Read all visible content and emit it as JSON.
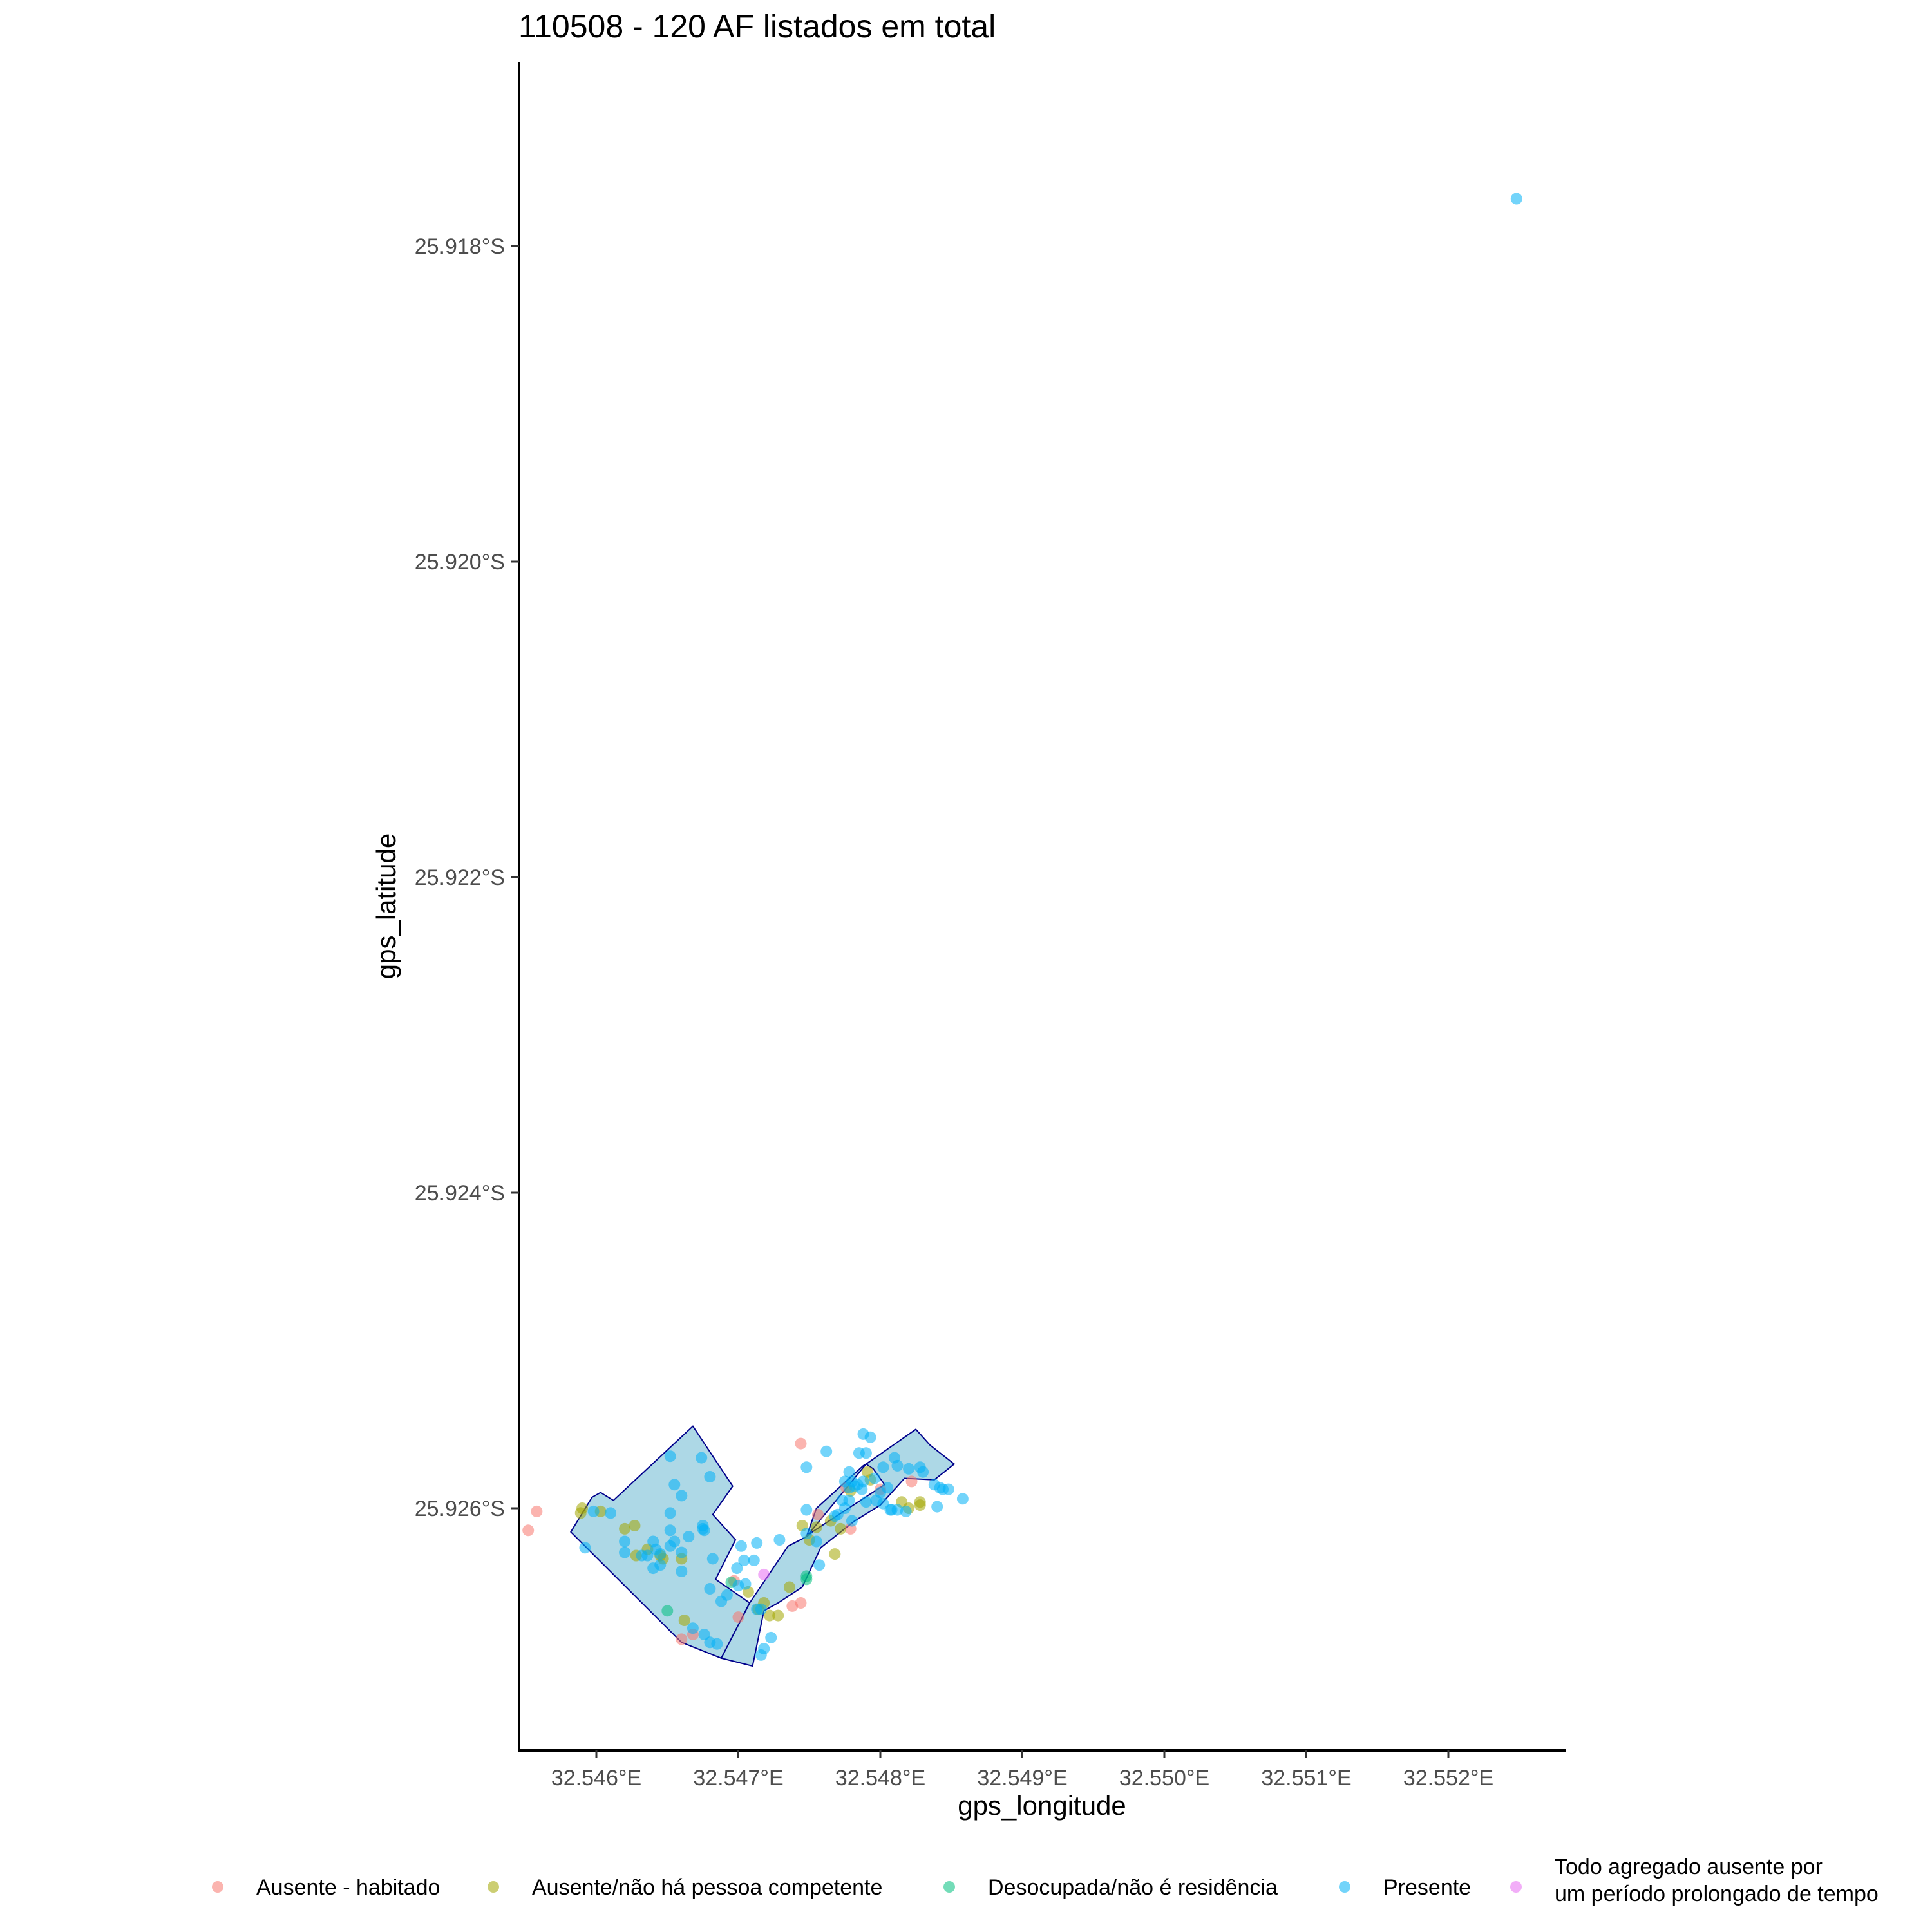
{
  "chart_data": {
    "type": "scatter",
    "title": "110508 - 120 AF listados em total",
    "xlabel": "gps_longitude",
    "ylabel": "gps_latitude",
    "xlim": [
      32.5455,
      32.5528
    ],
    "ylim": [
      -25.9272,
      -25.9168
    ],
    "x_ticks": [
      32.546,
      32.547,
      32.548,
      32.549,
      32.55,
      32.551,
      32.552
    ],
    "x_tick_labels": [
      "32.546°E",
      "32.547°E",
      "32.548°E",
      "32.549°E",
      "32.550°E",
      "32.551°E",
      "32.552°E"
    ],
    "y_ticks": [
      -25.918,
      -25.92,
      -25.922,
      -25.924,
      -25.926
    ],
    "y_tick_labels": [
      "25.918°S",
      "25.920°S",
      "25.922°S",
      "25.924°S",
      "25.926°S"
    ],
    "grid": false,
    "legend_position": "bottom",
    "polygon": {
      "fill": "#add8e6",
      "stroke": "#00008b",
      "shapes": [
        [
          [
            32.54582,
            -25.92615
          ],
          [
            32.54597,
            -25.92593
          ],
          [
            32.54603,
            -25.9259
          ],
          [
            32.54612,
            -25.92595
          ],
          [
            32.54668,
            -25.92548
          ],
          [
            32.54696,
            -25.92586
          ],
          [
            32.54682,
            -25.92604
          ],
          [
            32.54698,
            -25.9262
          ],
          [
            32.54684,
            -25.92645
          ],
          [
            32.54708,
            -25.9266
          ],
          [
            32.54688,
            -25.92695
          ],
          [
            32.5466,
            -25.92685
          ],
          [
            32.54582,
            -25.92615
          ]
        ],
        [
          [
            32.54708,
            -25.9266
          ],
          [
            32.54735,
            -25.92624
          ],
          [
            32.54748,
            -25.92618
          ],
          [
            32.54752,
            -25.92615
          ],
          [
            32.54803,
            -25.92585
          ],
          [
            32.54795,
            -25.92575
          ],
          [
            32.5479,
            -25.92572
          ],
          [
            32.54825,
            -25.9255
          ],
          [
            32.54835,
            -25.9256
          ],
          [
            32.54852,
            -25.92572
          ],
          [
            32.54838,
            -25.92582
          ],
          [
            32.54817,
            -25.92581
          ],
          [
            32.548,
            -25.92598
          ],
          [
            32.54782,
            -25.92608
          ],
          [
            32.54758,
            -25.92625
          ],
          [
            32.54745,
            -25.9265
          ],
          [
            32.54728,
            -25.9266
          ],
          [
            32.54718,
            -25.92665
          ],
          [
            32.5471,
            -25.927
          ],
          [
            32.54688,
            -25.92695
          ],
          [
            32.54708,
            -25.9266
          ]
        ],
        [
          [
            32.54748,
            -25.92618
          ],
          [
            32.54755,
            -25.926
          ],
          [
            32.54788,
            -25.92573
          ],
          [
            32.5479,
            -25.92572
          ],
          [
            32.54748,
            -25.92618
          ]
        ]
      ]
    },
    "legend": [
      {
        "name": "Ausente - habitado",
        "color": "#f8766d"
      },
      {
        "name": "Ausente/não há pessoa competente",
        "color": "#a3a500"
      },
      {
        "name": "Desocupada/não é residência",
        "color": "#00bf7d"
      },
      {
        "name": "Presente",
        "color": "#00b0f6"
      },
      {
        "name": "Todo agregado ausente por",
        "name_line2": "um período prolongado de tempo",
        "color": "#e76bf3"
      }
    ],
    "series": [
      {
        "name": "Ausente - habitado",
        "color": "#f8766d",
        "points": [
          [
            32.54744,
            -25.92559
          ],
          [
            32.548,
            -25.92588
          ],
          [
            32.54822,
            -25.92583
          ],
          [
            32.54756,
            -25.92604
          ],
          [
            32.54779,
            -25.92613
          ],
          [
            32.54558,
            -25.92602
          ],
          [
            32.54552,
            -25.92614
          ],
          [
            32.54697,
            -25.92646
          ],
          [
            32.547,
            -25.92669
          ],
          [
            32.54744,
            -25.9266
          ],
          [
            32.54738,
            -25.92662
          ],
          [
            32.54668,
            -25.9268
          ],
          [
            32.5466,
            -25.92683
          ],
          [
            32.54776,
            -25.92587
          ]
        ]
      },
      {
        "name": "Ausente/não há pessoa competente",
        "color": "#a3a500",
        "points": [
          [
            32.54589,
            -25.92603
          ],
          [
            32.54603,
            -25.92602
          ],
          [
            32.5462,
            -25.92613
          ],
          [
            32.54627,
            -25.92611
          ],
          [
            32.5459,
            -25.926
          ],
          [
            32.54628,
            -25.9263
          ],
          [
            32.54636,
            -25.92626
          ],
          [
            32.54647,
            -25.92632
          ],
          [
            32.5466,
            -25.92632
          ],
          [
            32.54645,
            -25.9263
          ],
          [
            32.54662,
            -25.92671
          ],
          [
            32.54718,
            -25.9266
          ],
          [
            32.54722,
            -25.92668
          ],
          [
            32.54728,
            -25.92668
          ],
          [
            32.54755,
            -25.92612
          ],
          [
            32.54768,
            -25.92629
          ],
          [
            32.54779,
            -25.92589
          ],
          [
            32.54793,
            -25.92582
          ],
          [
            32.54815,
            -25.92596
          ],
          [
            32.54828,
            -25.92598
          ],
          [
            32.54772,
            -25.92613
          ],
          [
            32.54765,
            -25.92608
          ],
          [
            32.5475,
            -25.9262
          ],
          [
            32.54745,
            -25.92611
          ],
          [
            32.54736,
            -25.9265
          ],
          [
            32.54707,
            -25.92653
          ],
          [
            32.54714,
            -25.92664
          ],
          [
            32.54791,
            -25.92577
          ],
          [
            32.5482,
            -25.926
          ],
          [
            32.54828,
            -25.92596
          ]
        ]
      },
      {
        "name": "Desocupada/não é residência",
        "color": "#00bf7d",
        "points": [
          [
            32.5465,
            -25.92665
          ],
          [
            32.54748,
            -25.92643
          ],
          [
            32.54748,
            -25.92645
          ],
          [
            32.54695,
            -25.92647
          ]
        ]
      },
      {
        "name": "Presente",
        "color": "#00b0f6",
        "points": [
          [
            32.55248,
            -25.9177
          ],
          [
            32.54598,
            -25.92602
          ],
          [
            32.5461,
            -25.92603
          ],
          [
            32.54592,
            -25.92625
          ],
          [
            32.5464,
            -25.92621
          ],
          [
            32.54652,
            -25.92567
          ],
          [
            32.54655,
            -25.92585
          ],
          [
            32.5466,
            -25.92592
          ],
          [
            32.54652,
            -25.92603
          ],
          [
            32.54652,
            -25.92614
          ],
          [
            32.54636,
            -25.9263
          ],
          [
            32.5464,
            -25.92638
          ],
          [
            32.54652,
            -25.92624
          ],
          [
            32.5466,
            -25.9264
          ],
          [
            32.54645,
            -25.92636
          ],
          [
            32.5466,
            -25.92628
          ],
          [
            32.54675,
            -25.92613
          ],
          [
            32.54676,
            -25.92614
          ],
          [
            32.54674,
            -25.92568
          ],
          [
            32.54675,
            -25.92611
          ],
          [
            32.5468,
            -25.9258
          ],
          [
            32.54682,
            -25.92632
          ],
          [
            32.54688,
            -25.92659
          ],
          [
            32.54692,
            -25.92655
          ],
          [
            32.54668,
            -25.92676
          ],
          [
            32.54676,
            -25.9268
          ],
          [
            32.5468,
            -25.92685
          ],
          [
            32.54685,
            -25.92686
          ],
          [
            32.54699,
            -25.92638
          ],
          [
            32.54704,
            -25.92633
          ],
          [
            32.54702,
            -25.92624
          ],
          [
            32.54711,
            -25.92633
          ],
          [
            32.54713,
            -25.92622
          ],
          [
            32.54713,
            -25.92664
          ],
          [
            32.54716,
            -25.92664
          ],
          [
            32.54716,
            -25.92693
          ],
          [
            32.54718,
            -25.92689
          ],
          [
            32.54723,
            -25.92682
          ],
          [
            32.54729,
            -25.9262
          ],
          [
            32.54748,
            -25.92601
          ],
          [
            32.54748,
            -25.92616
          ],
          [
            32.54755,
            -25.92621
          ],
          [
            32.54757,
            -25.92636
          ],
          [
            32.54748,
            -25.92574
          ],
          [
            32.54775,
            -25.92583
          ],
          [
            32.54785,
            -25.92565
          ],
          [
            32.54784,
            -25.92585
          ],
          [
            32.54778,
            -25.92577
          ],
          [
            32.54762,
            -25.92564
          ],
          [
            32.54768,
            -25.92605
          ],
          [
            32.5477,
            -25.92604
          ],
          [
            32.54775,
            -25.926
          ],
          [
            32.54778,
            -25.92595
          ],
          [
            32.5478,
            -25.92583
          ],
          [
            32.5478,
            -25.92608
          ],
          [
            32.54782,
            -25.92586
          ],
          [
            32.54788,
            -25.92553
          ],
          [
            32.5479,
            -25.92596
          ],
          [
            32.54788,
            -25.92583
          ],
          [
            32.54796,
            -25.92581
          ],
          [
            32.54793,
            -25.92555
          ],
          [
            32.54797,
            -25.92595
          ],
          [
            32.548,
            -25.9259
          ],
          [
            32.54805,
            -25.92587
          ],
          [
            32.54807,
            -25.92601
          ],
          [
            32.54808,
            -25.92601
          ],
          [
            32.54812,
            -25.92601
          ],
          [
            32.54818,
            -25.92602
          ],
          [
            32.5482,
            -25.92575
          ],
          [
            32.54828,
            -25.92574
          ],
          [
            32.5483,
            -25.92577
          ],
          [
            32.5481,
            -25.92568
          ],
          [
            32.54812,
            -25.92573
          ],
          [
            32.54802,
            -25.92574
          ],
          [
            32.54787,
            -25.92588
          ],
          [
            32.54802,
            -25.92597
          ],
          [
            32.5479,
            -25.92565
          ],
          [
            32.54778,
            -25.92587
          ],
          [
            32.54838,
            -25.92585
          ],
          [
            32.54842,
            -25.92587
          ],
          [
            32.5484,
            -25.92599
          ],
          [
            32.54844,
            -25.92588
          ],
          [
            32.54848,
            -25.92588
          ],
          [
            32.54858,
            -25.92594
          ],
          [
            32.54773,
            -25.92595
          ],
          [
            32.5468,
            -25.92651
          ],
          [
            32.547,
            -25.92649
          ],
          [
            32.54705,
            -25.92648
          ],
          [
            32.54665,
            -25.92618
          ],
          [
            32.5462,
            -25.92621
          ],
          [
            32.54632,
            -25.9263
          ],
          [
            32.54645,
            -25.92629
          ],
          [
            32.5462,
            -25.92628
          ],
          [
            32.54642,
            -25.92626
          ],
          [
            32.54655,
            -25.92621
          ]
        ]
      },
      {
        "name": "Todo agregado ausente por um período prolongado de tempo",
        "color": "#e76bf3",
        "points": [
          [
            32.54718,
            -25.92642
          ]
        ]
      }
    ]
  }
}
